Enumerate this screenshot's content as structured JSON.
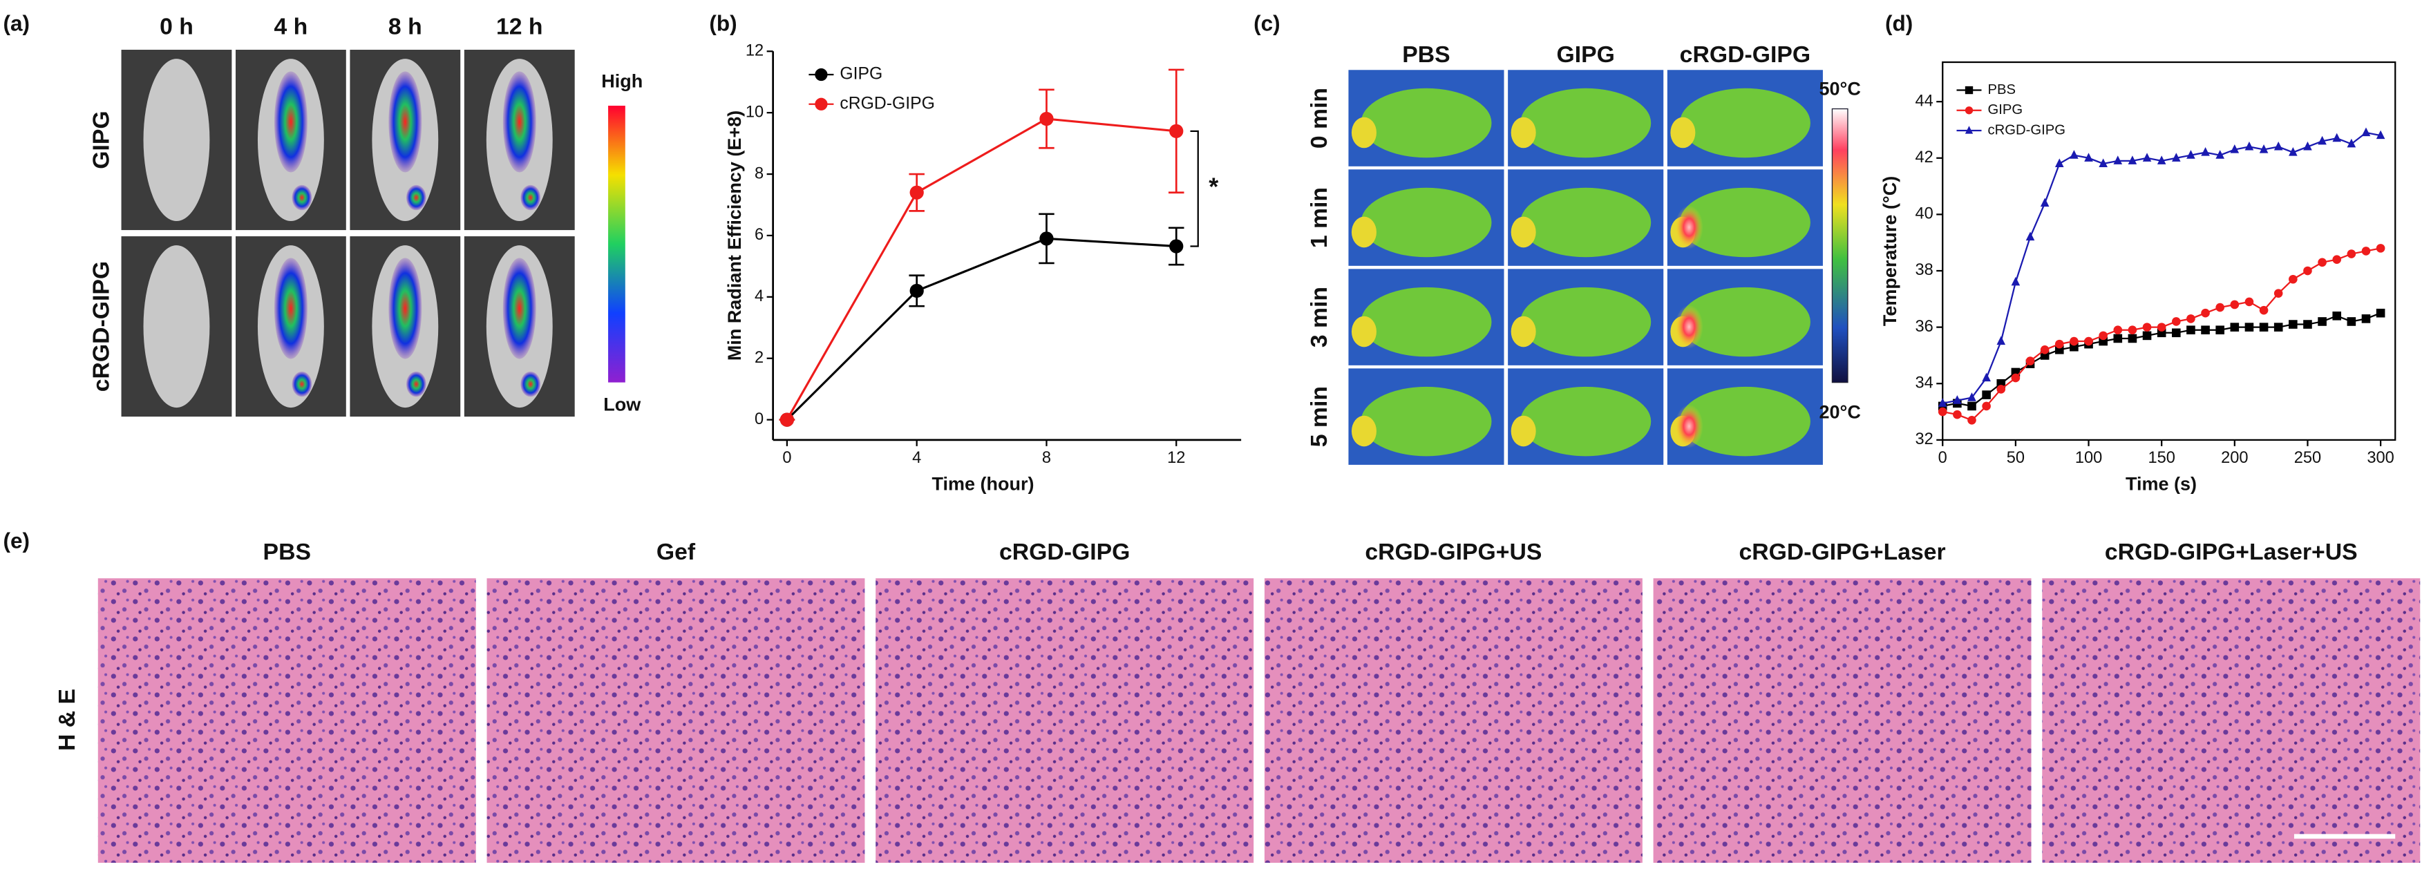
{
  "panels": {
    "a": {
      "label": "(a)",
      "columns": [
        "0 h",
        "4 h",
        "8 h",
        "12 h"
      ],
      "rows": [
        "GIPG",
        "cRGD-GIPG"
      ],
      "scale_high": "High",
      "scale_low": "Low"
    },
    "c": {
      "label": "(c)",
      "columns": [
        "PBS",
        "GIPG",
        "cRGD-GIPG"
      ],
      "rows": [
        "0 min",
        "1 min",
        "3 min",
        "5 min"
      ],
      "scale_high": "50°C",
      "scale_low": "20°C"
    },
    "e": {
      "label": "(e)",
      "columns": [
        "PBS",
        "Gef",
        "cRGD-GIPG",
        "cRGD-GIPG+US",
        "cRGD-GIPG+Laser",
        "cRGD-GIPG+Laser+US"
      ],
      "row_label": "H & E"
    }
  },
  "chart_data": [
    {
      "type": "line",
      "label": "(b)",
      "x_label": "Time (hour)",
      "y_label": "Min Radiant Efficiency (E+8)",
      "x": [
        0,
        4,
        8,
        12
      ],
      "series": [
        {
          "name": "GIPG",
          "color": "#000000",
          "marker": "circle",
          "values": [
            0,
            4.2,
            5.9,
            5.65
          ],
          "errors": [
            0,
            0.5,
            0.8,
            0.6
          ]
        },
        {
          "name": "cRGD-GIPG",
          "color": "#ee1c1c",
          "marker": "circle",
          "values": [
            0,
            7.4,
            9.8,
            9.4
          ],
          "errors": [
            0,
            0.6,
            0.95,
            2.0
          ]
        }
      ],
      "xlim": [
        0,
        14
      ],
      "xticks": [
        0,
        4,
        8,
        12
      ],
      "ylim": [
        0,
        12
      ],
      "yticks": [
        0,
        2,
        4,
        6,
        8,
        10,
        12
      ],
      "annotation": "*",
      "legend": "top-left"
    },
    {
      "type": "line",
      "label": "(d)",
      "x_label": "Time (s)",
      "y_label": "Temperature (°C)",
      "x": [
        0,
        10,
        20,
        30,
        40,
        50,
        60,
        70,
        80,
        90,
        100,
        110,
        120,
        130,
        140,
        150,
        160,
        170,
        180,
        190,
        200,
        210,
        220,
        230,
        240,
        250,
        260,
        270,
        280,
        290,
        300
      ],
      "series": [
        {
          "name": "PBS",
          "color": "#000000",
          "marker": "square",
          "values": [
            33.2,
            33.3,
            33.2,
            33.6,
            34.0,
            34.4,
            34.7,
            35.0,
            35.2,
            35.3,
            35.4,
            35.5,
            35.6,
            35.6,
            35.7,
            35.8,
            35.8,
            35.9,
            35.9,
            35.9,
            36.0,
            36.0,
            36.0,
            36.0,
            36.1,
            36.1,
            36.2,
            36.4,
            36.2,
            36.3,
            36.5
          ]
        },
        {
          "name": "GIPG",
          "color": "#ee1c1c",
          "marker": "circle",
          "values": [
            33.0,
            32.9,
            32.7,
            33.2,
            33.8,
            34.2,
            34.8,
            35.2,
            35.4,
            35.5,
            35.5,
            35.7,
            35.9,
            35.9,
            36.0,
            36.0,
            36.2,
            36.3,
            36.5,
            36.7,
            36.8,
            36.9,
            36.6,
            37.2,
            37.7,
            38.0,
            38.3,
            38.4,
            38.6,
            38.7,
            38.8
          ]
        },
        {
          "name": "cRGD-GIPG",
          "color": "#1a1ab0",
          "marker": "triangle",
          "values": [
            33.3,
            33.4,
            33.5,
            34.2,
            35.5,
            37.6,
            39.2,
            40.4,
            41.8,
            42.1,
            42.0,
            41.8,
            41.9,
            41.9,
            42.0,
            41.9,
            42.0,
            42.1,
            42.2,
            42.1,
            42.3,
            42.4,
            42.3,
            42.4,
            42.2,
            42.4,
            42.6,
            42.7,
            42.5,
            42.9,
            42.8
          ]
        }
      ],
      "xlim": [
        0,
        310
      ],
      "xticks": [
        0,
        50,
        100,
        150,
        200,
        250,
        300
      ],
      "ylim": [
        32,
        45.4
      ],
      "yticks": [
        32,
        34,
        36,
        38,
        40,
        42,
        44
      ],
      "legend": "top-left"
    }
  ]
}
